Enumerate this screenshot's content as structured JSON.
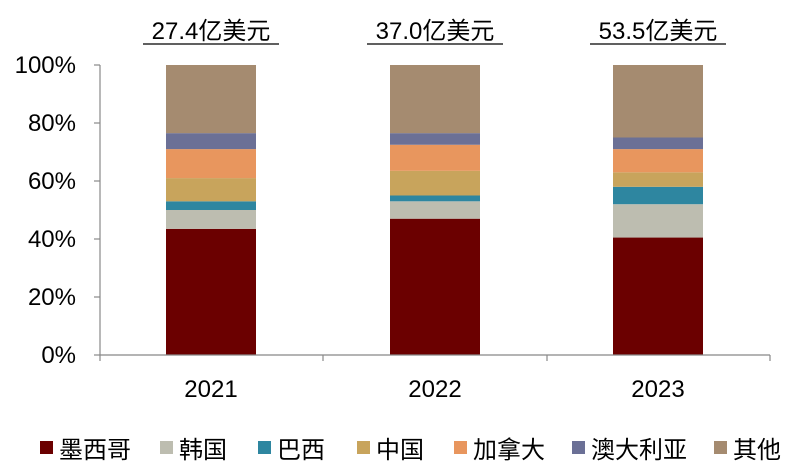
{
  "chart_data": {
    "type": "bar",
    "stacked": true,
    "percent": true,
    "categories": [
      "2021",
      "2022",
      "2023"
    ],
    "totals": [
      "27.4亿美元",
      "37.0亿美元",
      "53.5亿美元"
    ],
    "series": [
      {
        "name": "墨西哥",
        "color": "#6B0000",
        "values": [
          43.5,
          47.0,
          40.5
        ]
      },
      {
        "name": "韩国",
        "color": "#BDBDB0",
        "values": [
          6.5,
          6.0,
          11.5
        ]
      },
      {
        "name": "巴西",
        "color": "#2E86A0",
        "values": [
          3.0,
          2.0,
          6.0
        ]
      },
      {
        "name": "中国",
        "color": "#C8A45C",
        "values": [
          8.0,
          8.5,
          5.0
        ]
      },
      {
        "name": "加拿大",
        "color": "#E8965E",
        "values": [
          10.0,
          9.0,
          8.0
        ]
      },
      {
        "name": "澳大利亚",
        "color": "#6B7096",
        "values": [
          5.5,
          4.0,
          4.0
        ]
      },
      {
        "name": "其他",
        "color": "#A58B70",
        "values": [
          23.5,
          23.5,
          25.0
        ]
      }
    ],
    "ylim": [
      0,
      100
    ],
    "yticks": [
      "0%",
      "20%",
      "40%",
      "60%",
      "80%",
      "100%"
    ],
    "legend_position": "bottom",
    "grid": false
  }
}
